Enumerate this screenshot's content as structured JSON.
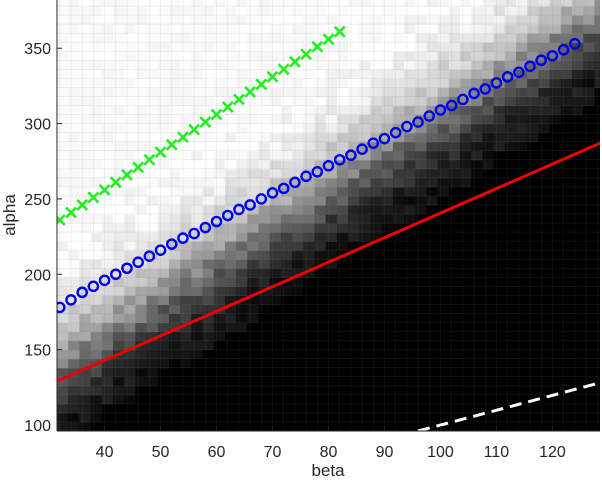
{
  "chart_data": {
    "type": "heatmap",
    "title": "",
    "xlabel": "beta",
    "ylabel": "alpha",
    "xlim": [
      31.5,
      128.5
    ],
    "ylim": [
      96,
      382
    ],
    "xticks": [
      40,
      50,
      60,
      70,
      80,
      90,
      100,
      110,
      120
    ],
    "yticks": [
      100,
      150,
      200,
      250,
      300,
      350
    ],
    "colormap": "gray",
    "grid": true,
    "legend": "none",
    "heatmap_description": {
      "x_cell_size": 2,
      "y_cell_size": 6,
      "boundary_alpha_at_x": [
        [
          32,
          142
        ],
        [
          128,
          372
        ]
      ],
      "value_above_boundary": 1.0,
      "value_below_boundary": 0.0
    },
    "series": [
      {
        "style": "markers",
        "marker": "x",
        "color": "#22ee22",
        "x": [
          32,
          34,
          36,
          38,
          40,
          42,
          44,
          46,
          48,
          50,
          52,
          54,
          56,
          58,
          60,
          62,
          64,
          66,
          68,
          70,
          72,
          74,
          76,
          78,
          80,
          82
        ],
        "y": [
          236,
          241,
          246,
          251,
          256,
          261,
          266,
          271,
          276,
          281,
          286,
          291,
          296,
          301,
          306,
          311,
          316,
          321,
          326,
          331,
          336,
          341,
          346,
          351,
          356,
          361
        ]
      },
      {
        "style": "markers",
        "marker": "o",
        "color": "#0000ee",
        "x": [
          32,
          34,
          36,
          38,
          40,
          42,
          44,
          46,
          48,
          50,
          52,
          54,
          56,
          58,
          60,
          62,
          64,
          66,
          68,
          70,
          72,
          74,
          76,
          78,
          80,
          82,
          84,
          86,
          88,
          90,
          92,
          94,
          96,
          98,
          100,
          102,
          104,
          106,
          108,
          110,
          112,
          114,
          116,
          118,
          120,
          122,
          124
        ],
        "y": [
          178,
          183,
          188,
          192,
          196,
          200,
          204,
          208,
          212,
          216,
          220,
          224,
          227,
          231,
          235,
          239,
          243,
          246,
          250,
          254,
          257,
          261,
          265,
          268,
          272,
          276,
          279,
          283,
          287,
          290,
          294,
          298,
          301,
          305,
          309,
          312,
          316,
          320,
          323,
          327,
          331,
          334,
          338,
          342,
          345,
          349,
          353
        ]
      },
      {
        "style": "line",
        "color": "#ee0000",
        "x": [
          31.5,
          128.5
        ],
        "y": [
          129,
          287
        ]
      },
      {
        "style": "dashed",
        "color": "#ffffff",
        "x": [
          96,
          128.5
        ],
        "y": [
          96,
          128
        ]
      }
    ]
  }
}
